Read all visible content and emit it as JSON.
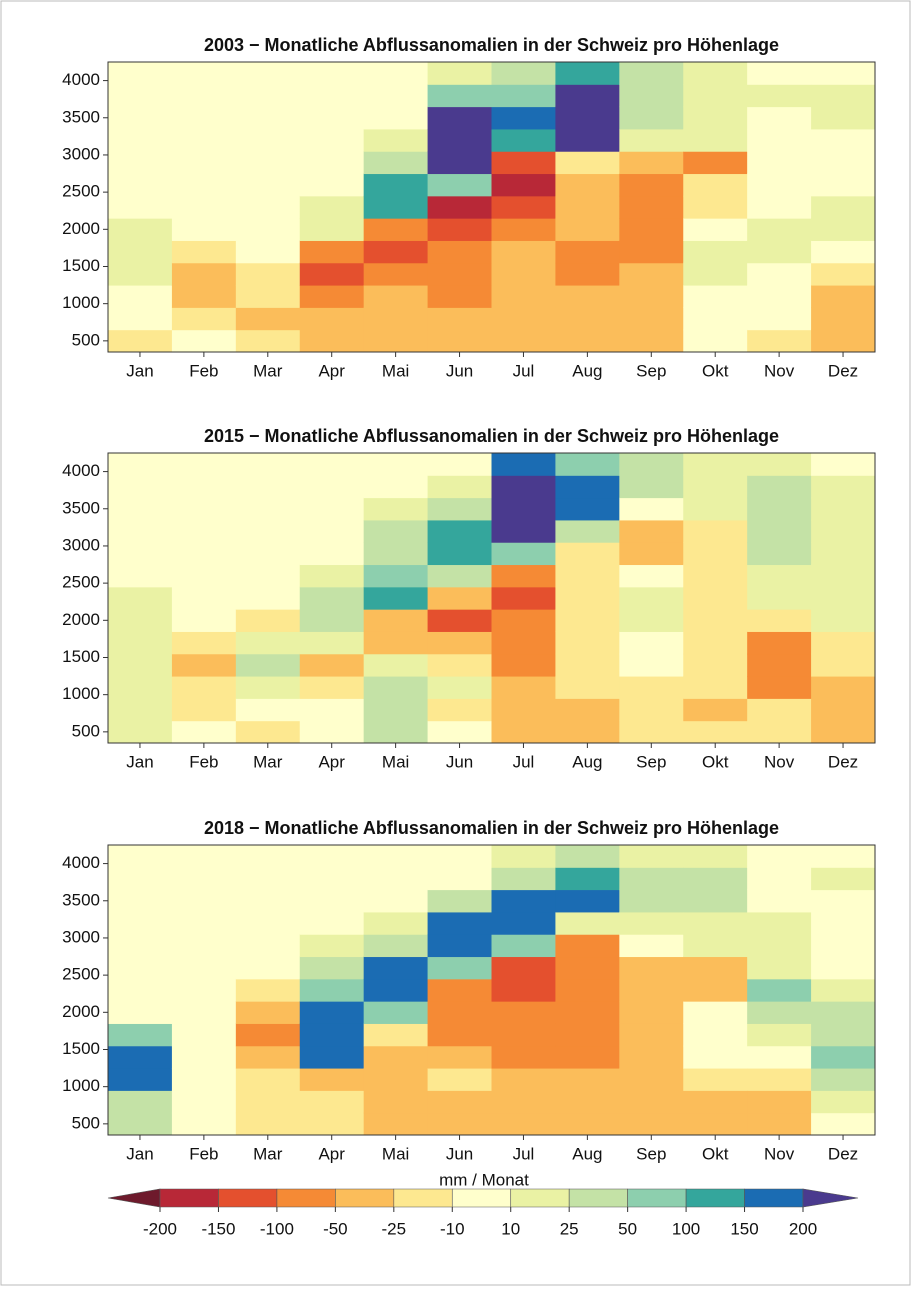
{
  "chart_data": [
    {
      "type": "heatmap",
      "title": "2003 − Monatliche Abflussanomalien in der Schweiz pro Höhenlage",
      "categories": [
        "Jan",
        "Feb",
        "Mar",
        "Apr",
        "Mai",
        "Jun",
        "Jul",
        "Aug",
        "Sep",
        "Okt",
        "Nov",
        "Dez"
      ],
      "y_bins": [
        350,
        650,
        950,
        1250,
        1550,
        1850,
        2150,
        2450,
        2750,
        3050,
        3350,
        3650,
        3950,
        4250
      ],
      "ylim": [
        350,
        4250
      ],
      "yticks": [
        500,
        1000,
        1500,
        2000,
        2500,
        3000,
        3500,
        4000
      ],
      "values": [
        [
          -17,
          0,
          0,
          17,
          17,
          17,
          0,
          0,
          0,
          0,
          0,
          0,
          0
        ],
        [
          0,
          -17,
          -35,
          -35,
          -17,
          0,
          0,
          0,
          0,
          0,
          0,
          0,
          0
        ],
        [
          -17,
          -35,
          -17,
          -17,
          0,
          0,
          0,
          0,
          0,
          0,
          0,
          0,
          0
        ],
        [
          -35,
          -35,
          -75,
          -125,
          -75,
          17,
          17,
          0,
          0,
          0,
          0,
          0,
          0
        ],
        [
          -35,
          -35,
          -35,
          -75,
          -125,
          -75,
          125,
          125,
          35,
          17,
          0,
          0,
          0
        ],
        [
          -35,
          -35,
          -75,
          -75,
          -75,
          -125,
          -175,
          75,
          250,
          250,
          250,
          75,
          17
        ],
        [
          -35,
          -35,
          -35,
          -35,
          -35,
          -75,
          -125,
          -175,
          -125,
          125,
          175,
          75,
          35
        ],
        [
          -35,
          -35,
          -35,
          -75,
          -75,
          -35,
          -35,
          -35,
          -17,
          250,
          250,
          250,
          125
        ],
        [
          -35,
          -35,
          -35,
          -35,
          -75,
          -75,
          -75,
          -75,
          -35,
          17,
          35,
          35,
          35
        ],
        [
          0,
          0,
          0,
          17,
          17,
          0,
          -17,
          -17,
          -75,
          17,
          17,
          17,
          17
        ],
        [
          -17,
          0,
          0,
          0,
          17,
          17,
          0,
          0,
          0,
          0,
          0,
          17,
          0
        ],
        [
          -35,
          -35,
          -35,
          -17,
          0,
          17,
          17,
          0,
          0,
          0,
          17,
          17,
          0
        ]
      ]
    },
    {
      "type": "heatmap",
      "title": "2015 − Monatliche Abflussanomalien in der Schweiz pro Höhenlage",
      "categories": [
        "Jan",
        "Feb",
        "Mar",
        "Apr",
        "Mai",
        "Jun",
        "Jul",
        "Aug",
        "Sep",
        "Okt",
        "Nov",
        "Dez"
      ],
      "y_bins": [
        350,
        650,
        950,
        1250,
        1550,
        1850,
        2150,
        2450,
        2750,
        3050,
        3350,
        3650,
        3950,
        4250
      ],
      "ylim": [
        350,
        4250
      ],
      "yticks": [
        500,
        1000,
        1500,
        2000,
        2500,
        3000,
        3500,
        4000
      ],
      "values": [
        [
          17,
          17,
          17,
          17,
          17,
          17,
          17,
          0,
          0,
          0,
          0,
          0,
          0
        ],
        [
          0,
          -17,
          -17,
          -35,
          -17,
          0,
          0,
          0,
          0,
          0,
          0,
          0,
          0
        ],
        [
          -17,
          0,
          17,
          35,
          17,
          -17,
          0,
          0,
          0,
          0,
          0,
          0,
          0
        ],
        [
          0,
          0,
          -17,
          -35,
          17,
          35,
          35,
          17,
          0,
          0,
          0,
          0,
          0
        ],
        [
          35,
          35,
          35,
          17,
          -35,
          -35,
          125,
          75,
          35,
          35,
          17,
          0,
          0
        ],
        [
          0,
          -17,
          17,
          -17,
          -35,
          -125,
          -35,
          35,
          125,
          125,
          35,
          17,
          0
        ],
        [
          -35,
          -35,
          -35,
          -75,
          -75,
          -75,
          -125,
          -75,
          75,
          250,
          250,
          250,
          175
        ],
        [
          -35,
          -35,
          -17,
          -17,
          -17,
          -17,
          -17,
          -17,
          -17,
          35,
          175,
          175,
          75
        ],
        [
          -17,
          -17,
          -17,
          0,
          0,
          17,
          17,
          0,
          -35,
          -35,
          0,
          35,
          35
        ],
        [
          -17,
          -35,
          -17,
          -17,
          -17,
          -17,
          -17,
          -17,
          -17,
          -17,
          17,
          17,
          17
        ],
        [
          -17,
          -17,
          -75,
          -75,
          -75,
          -17,
          17,
          17,
          35,
          35,
          35,
          35,
          17
        ],
        [
          -35,
          -35,
          -35,
          -17,
          -17,
          17,
          17,
          17,
          17,
          17,
          17,
          17,
          0
        ]
      ]
    },
    {
      "type": "heatmap",
      "title": "2018 − Monatliche Abflussanomalien in der Schweiz pro Höhenlage",
      "categories": [
        "Jan",
        "Feb",
        "Mar",
        "Apr",
        "Mai",
        "Jun",
        "Jul",
        "Aug",
        "Sep",
        "Okt",
        "Nov",
        "Dez"
      ],
      "y_bins": [
        350,
        650,
        950,
        1250,
        1550,
        1850,
        2150,
        2450,
        2750,
        3050,
        3350,
        3650,
        3950,
        4250
      ],
      "ylim": [
        350,
        4250
      ],
      "yticks": [
        500,
        1000,
        1500,
        2000,
        2500,
        3000,
        3500,
        4000
      ],
      "values": [
        [
          35,
          35,
          175,
          175,
          75,
          0,
          0,
          0,
          0,
          0,
          0,
          0,
          0
        ],
        [
          0,
          0,
          0,
          0,
          0,
          0,
          0,
          0,
          0,
          0,
          0,
          0,
          0
        ],
        [
          -17,
          -17,
          -17,
          -35,
          -75,
          -35,
          -17,
          0,
          0,
          0,
          0,
          0,
          0
        ],
        [
          -17,
          -17,
          -35,
          175,
          175,
          175,
          75,
          35,
          17,
          0,
          0,
          0,
          0
        ],
        [
          -35,
          -35,
          -35,
          -35,
          -17,
          75,
          175,
          175,
          35,
          17,
          0,
          0,
          0
        ],
        [
          -35,
          -35,
          -17,
          -35,
          -75,
          -75,
          -75,
          75,
          175,
          175,
          35,
          0,
          0
        ],
        [
          -35,
          -35,
          -35,
          -75,
          -75,
          -75,
          -125,
          -125,
          75,
          175,
          175,
          35,
          17
        ],
        [
          -35,
          -35,
          -35,
          -75,
          -75,
          -75,
          -75,
          -75,
          -75,
          17,
          175,
          125,
          35
        ],
        [
          -35,
          -35,
          -35,
          -35,
          -35,
          -35,
          -35,
          -35,
          0,
          17,
          35,
          35,
          17
        ],
        [
          -35,
          -35,
          -17,
          0,
          0,
          0,
          -35,
          -35,
          17,
          17,
          35,
          35,
          17
        ],
        [
          -35,
          -35,
          -17,
          0,
          17,
          35,
          75,
          17,
          17,
          17,
          0,
          0,
          0
        ],
        [
          0,
          17,
          35,
          75,
          35,
          35,
          17,
          0,
          0,
          0,
          0,
          17,
          0
        ]
      ]
    }
  ],
  "colorbar": {
    "title": "mm / Monat",
    "ticks": [
      -200,
      -150,
      -100,
      -50,
      -25,
      -10,
      10,
      25,
      50,
      100,
      150,
      200
    ],
    "colors": [
      "#6e1a2c",
      "#b82837",
      "#e4502e",
      "#f58a35",
      "#fbbd5a",
      "#fde890",
      "#ffffcc",
      "#eaf2a4",
      "#c4e2a6",
      "#8dcfae",
      "#34a69c",
      "#1b6cb3",
      "#4a3a8e"
    ]
  }
}
